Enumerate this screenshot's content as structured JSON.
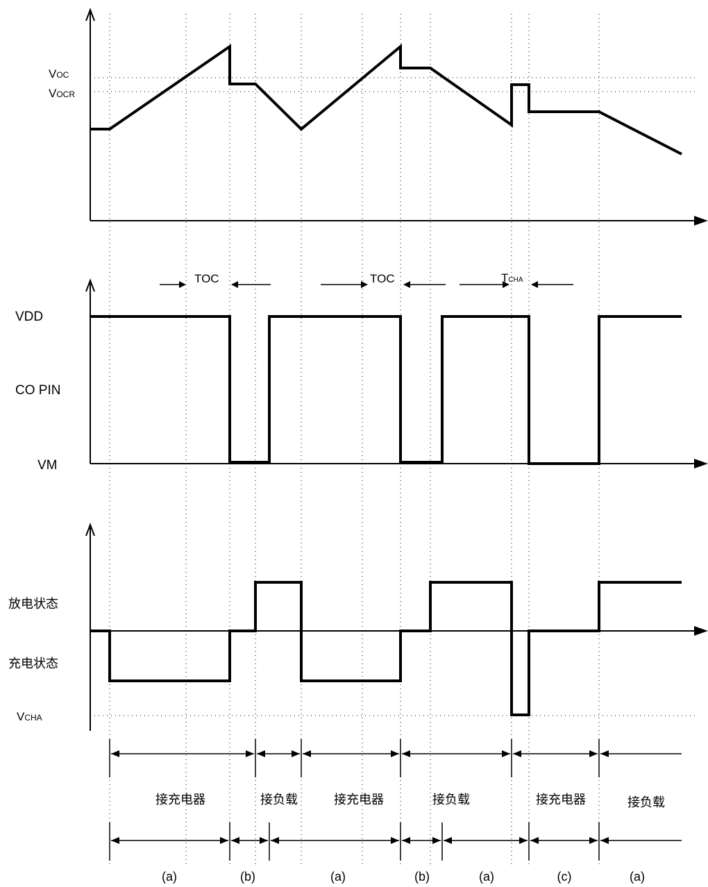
{
  "panel1": {
    "label_voc": "V",
    "label_voc_sub": "OC",
    "label_vocr": "V",
    "label_vocr_sub": "OCR"
  },
  "panel2": {
    "label_vdd": "VDD",
    "label_copin": "CO PIN",
    "label_vm": "VM",
    "toc_1": "TOC",
    "toc_2": "TOC",
    "tcha": "T",
    "tcha_sub": "CHA"
  },
  "panel3": {
    "label_discharge": "放电状态",
    "label_charge": "充电状态",
    "label_vcha": "V",
    "label_vcha_sub": "CHA"
  },
  "phases_top": [
    "接充电器",
    "接负载",
    "接充电器",
    "接负载",
    "接充电器",
    "接负载"
  ],
  "phases_bottom": [
    "(a)",
    "(b)",
    "(a)",
    "(b)",
    "(a)",
    "(c)",
    "(a)"
  ]
}
